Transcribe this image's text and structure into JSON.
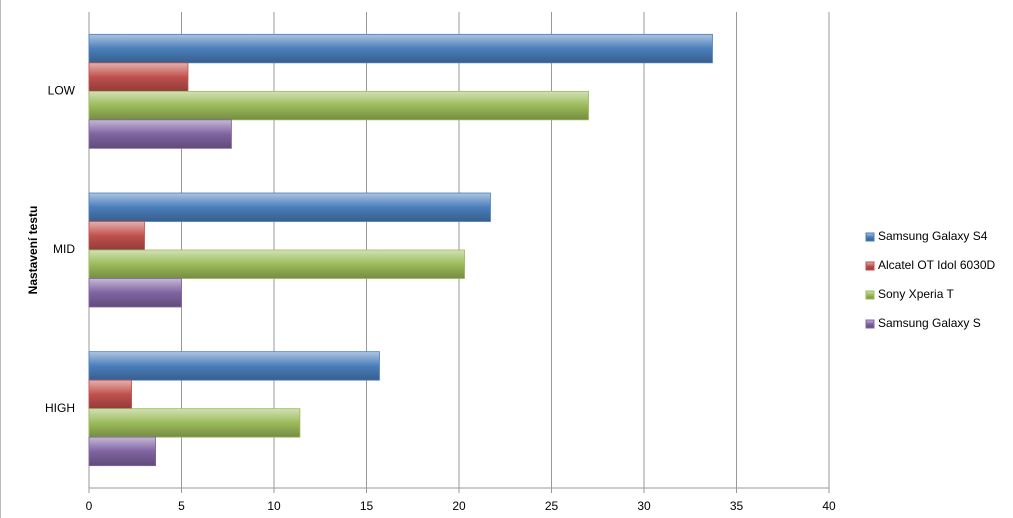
{
  "chart_data": {
    "type": "bar",
    "orientation": "horizontal",
    "y_label": "Nastavení testu",
    "categories": [
      "LOW",
      "MID",
      "HIGH"
    ],
    "series": [
      {
        "name": "Samsung Galaxy S4",
        "color": "#4a7ebb",
        "values": [
          33.7,
          21.7,
          15.7
        ]
      },
      {
        "name": "Alcatel OT Idol 6030D",
        "color": "#c0504d",
        "values": [
          5.35,
          3.0,
          2.3
        ]
      },
      {
        "name": "Sony Xperia T",
        "color": "#9bbb59",
        "values": [
          27.0,
          20.3,
          11.4
        ]
      },
      {
        "name": "Samsung Galaxy S",
        "color": "#8064a2",
        "values": [
          7.7,
          5.0,
          3.6
        ]
      }
    ],
    "xlim": [
      0,
      40
    ],
    "xticks": [
      0,
      5,
      10,
      15,
      20,
      25,
      30,
      35,
      40
    ],
    "grid": true,
    "legend": "right"
  }
}
